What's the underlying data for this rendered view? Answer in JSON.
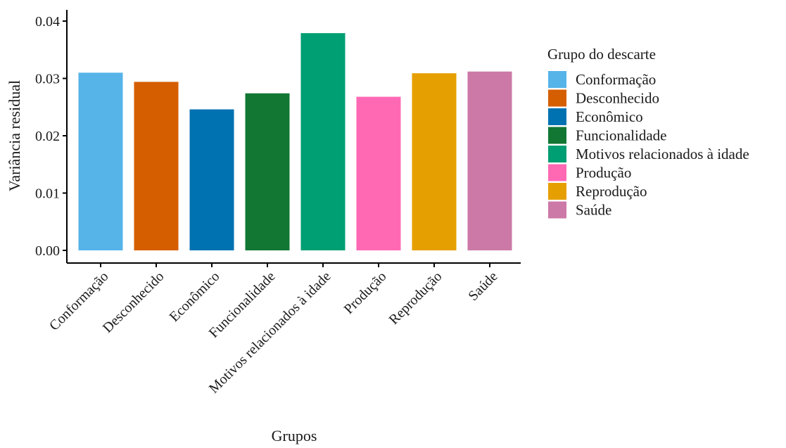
{
  "chart_data": {
    "type": "bar",
    "xlabel": "Grupos",
    "ylabel": "Variância residual",
    "categories": [
      "Conformação",
      "Desconhecido",
      "Econômico",
      "Funcionalidade",
      "Motivos relacionados à idade",
      "Produção",
      "Reprodução",
      "Saúde"
    ],
    "values": [
      0.031,
      0.0294,
      0.0246,
      0.0274,
      0.0379,
      0.0268,
      0.0309,
      0.0312
    ],
    "colors": [
      "#56B4E9",
      "#D55E00",
      "#0072B2",
      "#117733",
      "#009E73",
      "#FF69B4",
      "#E69F00",
      "#CC79A7"
    ],
    "ylim": [
      0,
      0.04
    ],
    "yticks": [
      0.0,
      0.01,
      0.02,
      0.03,
      0.04
    ],
    "ytick_labels": [
      "0.00",
      "0.01",
      "0.02",
      "0.03",
      "0.04"
    ],
    "grid": false,
    "legend": {
      "title": "Grupo do descarte",
      "position": "right",
      "entries": [
        "Conformação",
        "Desconhecido",
        "Econômico",
        "Funcionalidade",
        "Motivos relacionados à idade",
        "Produção",
        "Reprodução",
        "Saúde"
      ]
    }
  }
}
